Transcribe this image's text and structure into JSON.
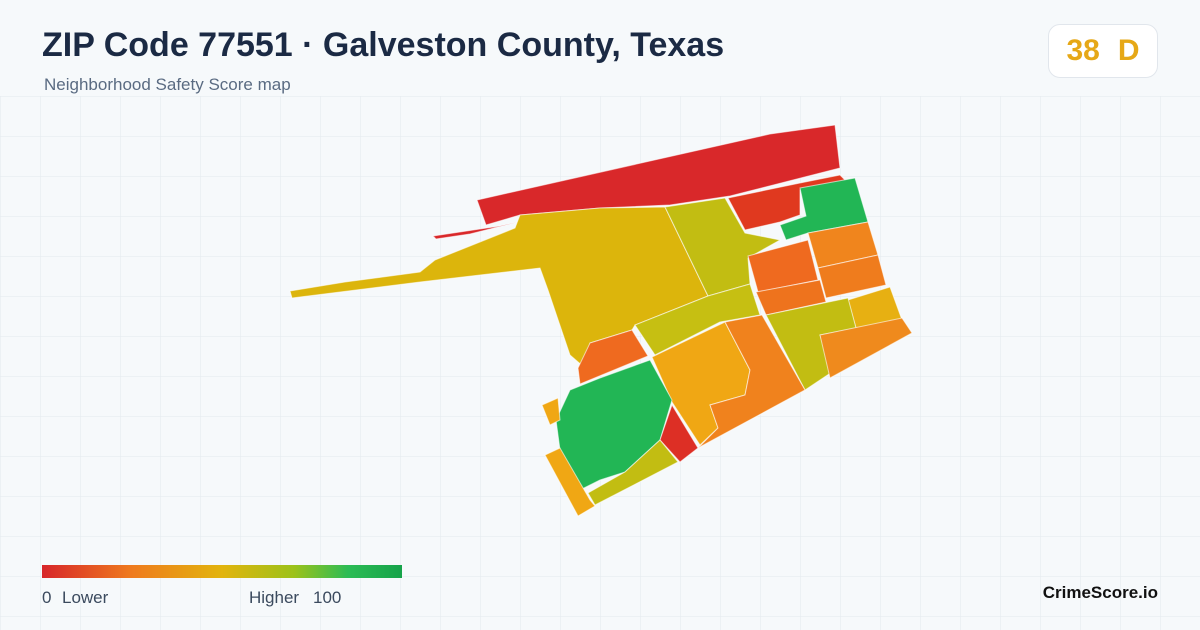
{
  "header": {
    "title": "ZIP Code 77551 · Galveston County, Texas",
    "subtitle": "Neighborhood Safety Score map"
  },
  "score": {
    "value": 38,
    "grade": "D"
  },
  "legend": {
    "min": 0,
    "min_label": "Lower",
    "max_label": "Higher",
    "max": 100
  },
  "brand": "CrimeScore.io"
}
